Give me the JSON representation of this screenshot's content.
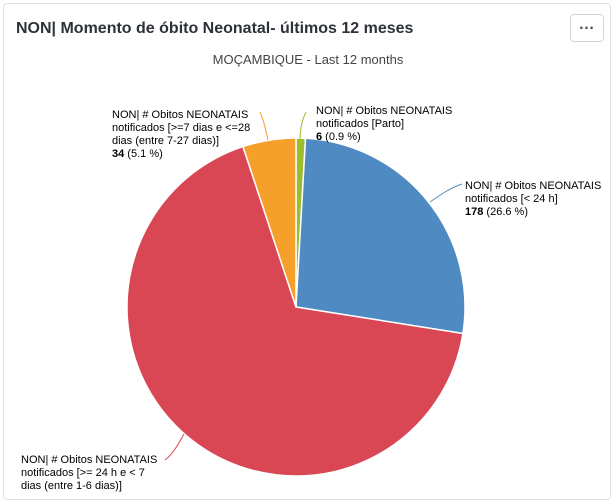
{
  "card": {
    "title": "NON| Momento de óbito Neonatal- últimos 12 meses",
    "menu_icon": "more-horizontal-icon"
  },
  "chart_data": {
    "type": "pie",
    "title": "MOÇAMBIQUE - Last 12 months",
    "slices": [
      {
        "label_lines": [
          "NON| # Obitos NEONATAIS",
          "notificados [Parto]"
        ],
        "value": 6,
        "value_text": "6",
        "percent_text": "(0.9 %)",
        "color": "#9bbd2e"
      },
      {
        "label_lines": [
          "NON| # Obitos NEONATAIS",
          "notificados [< 24 h]"
        ],
        "value": 178,
        "value_text": "178",
        "percent_text": "(26.6 %)",
        "color": "#4f8bc2"
      },
      {
        "label_lines": [
          "NON| # Obitos NEONATAIS",
          "notificados [>= 24 h e < 7",
          "dias (entre 1-6 dias)]"
        ],
        "value": 451,
        "value_text": "",
        "percent_text": "",
        "color": "#d94654"
      },
      {
        "label_lines": [
          "NON| # Obitos NEONATAIS",
          "notificados [>=7 dias e <=28",
          "dias (entre 7-27 dias)]"
        ],
        "value": 34,
        "value_text": "34",
        "percent_text": "(5.1 %)",
        "color": "#f5a02a"
      }
    ]
  }
}
